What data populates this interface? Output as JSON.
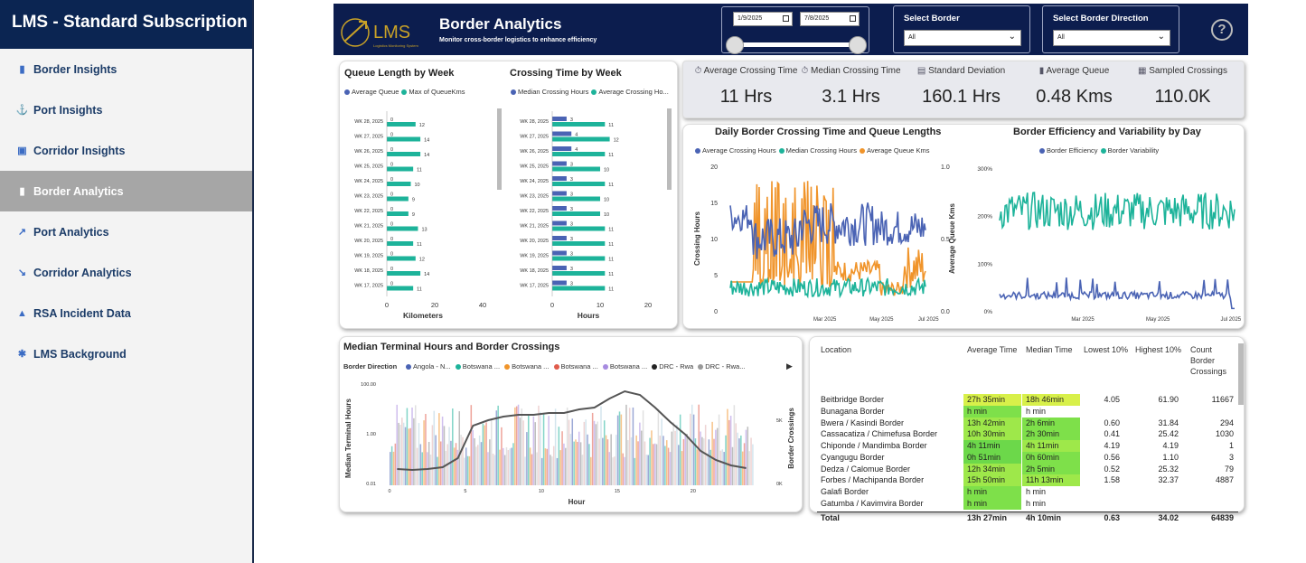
{
  "app_title": "LMS - Standard Subscription",
  "nav": [
    {
      "label": "Border Insights",
      "icon": "bar-chart-icon"
    },
    {
      "label": "Port Insights",
      "icon": "anchor-icon"
    },
    {
      "label": "Corridor Insights",
      "icon": "image-icon"
    },
    {
      "label": "Border Analytics",
      "icon": "bar-chart-icon",
      "active": true
    },
    {
      "label": "Port Analytics",
      "icon": "trend-up-icon"
    },
    {
      "label": "Corridor Analytics",
      "icon": "trend-down-icon"
    },
    {
      "label": "RSA Incident Data",
      "icon": "cone-icon"
    },
    {
      "label": "LMS Background",
      "icon": "puzzle-icon"
    }
  ],
  "header": {
    "logo_text": "LMS",
    "logo_tagline": "Logistics Monitoring System",
    "title": "Border Analytics",
    "subtitle": "Monitor cross-border logistics to enhance efficiency",
    "date_from": "1/9/2025",
    "date_to": "7/8/2025",
    "select_border_label": "Select Border",
    "select_border_value": "All",
    "select_direction_label": "Select Border Direction",
    "select_direction_value": "All",
    "help": "?"
  },
  "kpis": [
    {
      "label": "Average Crossing Time",
      "value": "11 Hrs",
      "icon": "stopwatch-icon"
    },
    {
      "label": "Median Crossing Time",
      "value": "3.1 Hrs",
      "icon": "timer-icon"
    },
    {
      "label": "Standard Deviation",
      "value": "160.1 Hrs",
      "icon": "chart-icon"
    },
    {
      "label": "Average Queue",
      "value": "0.48 Kms",
      "icon": "traffic-light-icon"
    },
    {
      "label": "Sampled Crossings",
      "value": "110.0K",
      "icon": "grid-icon"
    }
  ],
  "queue_chart": {
    "title": "Queue Length by Week",
    "legend": [
      "Average Queue",
      "Max of QueueKms"
    ],
    "xlabel": "Kilometers",
    "ticks": [
      "0",
      "20",
      "40"
    ],
    "colors": [
      "#4a63b4",
      "#1db39a"
    ]
  },
  "crossing_chart": {
    "title": "Crossing Time by Week",
    "legend": [
      "Median Crossing Hours",
      "Average Crossing Ho..."
    ],
    "xlabel": "Hours",
    "ticks": [
      "0",
      "10",
      "20"
    ],
    "colors": [
      "#4a63b4",
      "#1db39a"
    ]
  },
  "daily_chart": {
    "title": "Daily Border Crossing Time and Queue Lengths",
    "legend": [
      "Average Crossing Hours",
      "Median Crossing Hours",
      "Average Queue Kms"
    ],
    "ylabel": "Crossing Hours",
    "y2label": "Average Queue Kms",
    "yticks": [
      "20",
      "15",
      "10",
      "5",
      "0"
    ],
    "y2ticks": [
      "1.0",
      "0.5",
      "0.0"
    ],
    "xticks": [
      "Mar 2025",
      "May 2025",
      "Jul 2025"
    ],
    "colors": [
      "#4a63b4",
      "#1db39a",
      "#f0942a"
    ]
  },
  "efficiency_chart": {
    "title": "Border Efficiency and Variability by Day",
    "legend": [
      "Border Efficiency",
      "Border Variability"
    ],
    "yticks": [
      "300%",
      "200%",
      "100%",
      "0%"
    ],
    "xticks": [
      "Mar 2025",
      "May 2025",
      "Jul 2025"
    ],
    "colors": [
      "#4a63b4",
      "#1db39a"
    ]
  },
  "terminal_chart": {
    "title": "Median Terminal Hours and Border Crossings",
    "legend_title": "Border Direction",
    "legend": [
      "Angola - N...",
      "Botswana ...",
      "Botswana ...",
      "Botswana ...",
      "Botswana ...",
      "DRC - Rwa",
      "DRC - Rwa..."
    ],
    "legend_colors": [
      "#4a63b4",
      "#1db39a",
      "#f0942a",
      "#e05b4b",
      "#a78be0",
      "#222222",
      "#999999"
    ],
    "ylabel": "Median Terminal Hours",
    "y2label": "Border Crossings",
    "yticks": [
      "100.00",
      "1.00",
      "0.01"
    ],
    "y2ticks": [
      "5K",
      "0K"
    ],
    "xlabel": "Hour",
    "xticks": [
      "0",
      "5",
      "10",
      "15",
      "20"
    ]
  },
  "chart_data": [
    {
      "type": "bar",
      "title": "Queue Length by Week",
      "xlabel": "Kilometers",
      "xlim": [
        0,
        40
      ],
      "categories": [
        "WK 28, 2025",
        "WK 27, 2025",
        "WK 26, 2025",
        "WK 25, 2025",
        "WK 24, 2025",
        "WK 23, 2025",
        "WK 22, 2025",
        "WK 21, 2025",
        "WK 20, 2025",
        "WK 19, 2025",
        "WK 18, 2025",
        "WK 17, 2025"
      ],
      "series": [
        {
          "name": "Average Queue",
          "values": [
            0,
            0,
            0,
            0,
            0,
            0,
            0,
            0,
            0,
            0,
            0,
            0
          ]
        },
        {
          "name": "Max of QueueKms",
          "values": [
            12,
            14,
            14,
            11,
            10,
            9,
            9,
            13,
            11,
            12,
            14,
            11
          ]
        }
      ]
    },
    {
      "type": "bar",
      "title": "Crossing Time by Week",
      "xlabel": "Hours",
      "xlim": [
        0,
        20
      ],
      "categories": [
        "WK 28, 2025",
        "WK 27, 2025",
        "WK 26, 2025",
        "WK 25, 2025",
        "WK 24, 2025",
        "WK 23, 2025",
        "WK 22, 2025",
        "WK 21, 2025",
        "WK 20, 2025",
        "WK 19, 2025",
        "WK 18, 2025",
        "WK 17, 2025"
      ],
      "series": [
        {
          "name": "Median Crossing Hours",
          "values": [
            3,
            4,
            4,
            3,
            3,
            3,
            3,
            3,
            3,
            3,
            3,
            3
          ]
        },
        {
          "name": "Average Crossing Ho...",
          "values": [
            11,
            12,
            11,
            10,
            11,
            10,
            10,
            11,
            11,
            11,
            11,
            11
          ]
        }
      ]
    },
    {
      "type": "line",
      "title": "Daily Border Crossing Time and Queue Lengths",
      "ylabel": "Crossing Hours",
      "y2label": "Average Queue Kms",
      "ylim": [
        0,
        20
      ],
      "y2lim": [
        0,
        1.0
      ],
      "x": [
        "Mar 2025",
        "May 2025",
        "Jul 2025"
      ],
      "series": [
        {
          "name": "Average Crossing Hours",
          "approx_mean": 11
        },
        {
          "name": "Median Crossing Hours",
          "approx_mean": 3
        },
        {
          "name": "Average Queue Kms",
          "approx_mean": 0.48
        }
      ]
    },
    {
      "type": "line",
      "title": "Border Efficiency and Variability by Day",
      "ylim": [
        0,
        300
      ],
      "x": [
        "Mar 2025",
        "May 2025",
        "Jul 2025"
      ],
      "series": [
        {
          "name": "Border Efficiency",
          "approx_mean": 30
        },
        {
          "name": "Border Variability",
          "approx_mean": 210
        }
      ]
    },
    {
      "type": "bar",
      "title": "Median Terminal Hours and Border Crossings",
      "xlabel": "Hour",
      "ylabel": "Median Terminal Hours",
      "y2label": "Border Crossings",
      "x": [
        0,
        1,
        2,
        3,
        4,
        5,
        6,
        7,
        8,
        9,
        10,
        11,
        12,
        13,
        14,
        15,
        16,
        17,
        18,
        19,
        20,
        21,
        22,
        23
      ],
      "series": [
        {
          "name": "Border Crossings",
          "values": [
            900,
            850,
            900,
            1000,
            1500,
            3300,
            3600,
            3800,
            3900,
            3900,
            4000,
            4000,
            4200,
            4300,
            4800,
            5200,
            5000,
            4300,
            3500,
            2800,
            1900,
            1400,
            1100,
            950
          ]
        }
      ]
    }
  ],
  "table": {
    "headers": [
      "Location",
      "Average Time",
      "Median Time",
      "Lowest 10%",
      "Highest 10%",
      "Count Border Crossings"
    ],
    "rows": [
      [
        "Beitbridge Border",
        "27h 35min",
        "18h 46min",
        "4.05",
        "61.90",
        "11667"
      ],
      [
        "Bunagana Border",
        "h min",
        "h min",
        "",
        "",
        ""
      ],
      [
        "Bwera / Kasindi Border",
        "13h 42min",
        "2h 6min",
        "0.60",
        "31.84",
        "294"
      ],
      [
        "Cassacatiza / Chimefusa Border",
        "10h 30min",
        "2h 30min",
        "0.41",
        "25.42",
        "1030"
      ],
      [
        "Chiponde / Mandimba Border",
        "4h 11min",
        "4h 11min",
        "4.19",
        "4.19",
        "1"
      ],
      [
        "Cyangugu Border",
        "0h 51min",
        "0h 60min",
        "0.56",
        "1.10",
        "3"
      ],
      [
        "Dedza / Calomue Border",
        "12h 34min",
        "2h 5min",
        "0.52",
        "25.32",
        "79"
      ],
      [
        "Forbes / Machipanda Border",
        "15h 50min",
        "11h 13min",
        "1.58",
        "32.37",
        "4887"
      ],
      [
        "Galafi Border",
        "h min",
        "h min",
        "",
        "",
        ""
      ],
      [
        "Gatumba / Kavimvira Border",
        "h min",
        "h min",
        "",
        "",
        ""
      ]
    ],
    "total": [
      "Total",
      "13h 27min",
      "4h 10min",
      "0.63",
      "34.02",
      "64839"
    ]
  }
}
